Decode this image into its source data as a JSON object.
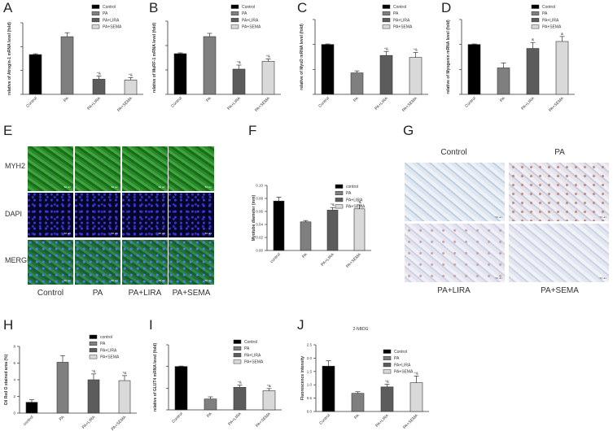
{
  "panel_letters": {
    "A": "A",
    "B": "B",
    "C": "C",
    "D": "D",
    "E": "E",
    "F": "F",
    "G": "G",
    "H": "H",
    "I": "I",
    "J": "J"
  },
  "legend_series": [
    "Control",
    "PA",
    "PA+LIRA",
    "PA+SEMA"
  ],
  "colors": {
    "Control": "#000000",
    "PA": "#7f7f7f",
    "PA+LIRA": "#5c5c5c",
    "PA+SEMA": "#d9d9d9"
  },
  "chart_data": [
    {
      "id": "A",
      "type": "bar",
      "categories": [
        "Control",
        "PA",
        "PA+LIRA",
        "PA+SEMA"
      ],
      "values": [
        1.0,
        1.45,
        0.38,
        0.36
      ],
      "errors": [
        0.02,
        0.1,
        0.08,
        0.06
      ],
      "annotations": [
        "",
        "",
        "*&",
        "*&"
      ],
      "ylabel": "relative of Atrogin-1 mRNA level (fold)",
      "ylim": [
        0,
        1.8
      ]
    },
    {
      "id": "B",
      "type": "bar",
      "categories": [
        "Control",
        "PA",
        "PA+LIRA",
        "PA+SEMA"
      ],
      "values": [
        1.0,
        1.42,
        0.62,
        0.81
      ],
      "errors": [
        0.02,
        0.08,
        0.1,
        0.06
      ],
      "annotations": [
        "",
        "",
        "*&",
        "*&"
      ],
      "ylabel": "relative of MuRF-1 mRNA level (fold)",
      "ylim": [
        0,
        1.8
      ]
    },
    {
      "id": "C",
      "type": "bar",
      "categories": [
        "Control",
        "PA",
        "PA+LIRA",
        "PA+SEMA"
      ],
      "values": [
        1.0,
        0.43,
        0.78,
        0.74
      ],
      "errors": [
        0.01,
        0.04,
        0.08,
        0.1
      ],
      "annotations": [
        "",
        "",
        "*&",
        "*&"
      ],
      "ylabel": "relative of MyoD mRNA level (fold)",
      "ylim": [
        0,
        1.5
      ]
    },
    {
      "id": "D",
      "type": "bar",
      "categories": [
        "Control",
        "PA",
        "PA+LIRA",
        "PA+SEMA"
      ],
      "values": [
        1.0,
        0.53,
        0.92,
        1.06
      ],
      "errors": [
        0.01,
        0.1,
        0.12,
        0.1
      ],
      "annotations": [
        "",
        "",
        "&",
        "&"
      ],
      "ylabel": "relative of Myogenin mRNA level (fold)",
      "ylim": [
        0,
        1.5
      ]
    },
    {
      "id": "F",
      "type": "bar",
      "categories": [
        "control",
        "PA",
        "PA+LIRA",
        "PA+SEMA"
      ],
      "values": [
        0.076,
        0.044,
        0.062,
        0.064
      ],
      "errors": [
        0.006,
        0.002,
        0.004,
        0.006
      ],
      "annotations": [
        "",
        "",
        "*&",
        "*&"
      ],
      "ylabel": "Myotube diameter (mm)",
      "ylim": [
        0,
        0.1
      ],
      "yticks": [
        "0.00",
        "0.02",
        "0.04",
        "0.06",
        "0.08",
        "0.10"
      ]
    },
    {
      "id": "H",
      "type": "bar",
      "categories": [
        "control",
        "PA",
        "PA+LIRA",
        "PA+SEMA"
      ],
      "values": [
        1.3,
        6.1,
        4.0,
        3.9
      ],
      "errors": [
        0.3,
        0.8,
        0.7,
        0.6
      ],
      "annotations": [
        "",
        "",
        "*&",
        "*&"
      ],
      "ylabel": "Oil Red O stained area (%)",
      "ylim": [
        0,
        8
      ],
      "yticks": [
        "0",
        "2",
        "4",
        "6",
        "8"
      ]
    },
    {
      "id": "I",
      "type": "bar",
      "categories": [
        "Control",
        "PA",
        "PA+LIRA",
        "PA+SEMA"
      ],
      "values": [
        1.0,
        0.25,
        0.52,
        0.44
      ],
      "errors": [
        0.01,
        0.05,
        0.05,
        0.05
      ],
      "annotations": [
        "",
        "",
        "*&",
        "*&"
      ],
      "ylabel": "relative of GLUT4 mRNA level (fold)",
      "ylim": [
        0,
        1.5
      ]
    },
    {
      "id": "J",
      "type": "bar",
      "title": "2-NBDG",
      "categories": [
        "Control",
        "PA",
        "PA+LIRA",
        "PA+SEMA"
      ],
      "values": [
        1.7,
        0.68,
        0.92,
        1.08
      ],
      "errors": [
        0.2,
        0.06,
        0.1,
        0.25
      ],
      "annotations": [
        "",
        "",
        "*&",
        "*&"
      ],
      "ylabel": "Fluorescence intensity",
      "ylim": [
        0,
        2.5
      ],
      "yticks": [
        "0.0",
        "0.5",
        "1.0",
        "1.5",
        "2.0",
        "2.5"
      ]
    }
  ],
  "panel_e": {
    "row_labels": [
      "MYH2",
      "DAPI",
      "MERGE"
    ],
    "column_labels": [
      "Control",
      "PA",
      "PA+LIRA",
      "PA+SEMA"
    ],
    "scale_bar": "50 um"
  },
  "panel_g": {
    "labels": [
      "Control",
      "PA",
      "PA+LIRA",
      "PA+SEMA"
    ],
    "scale_bar": "50 um"
  }
}
